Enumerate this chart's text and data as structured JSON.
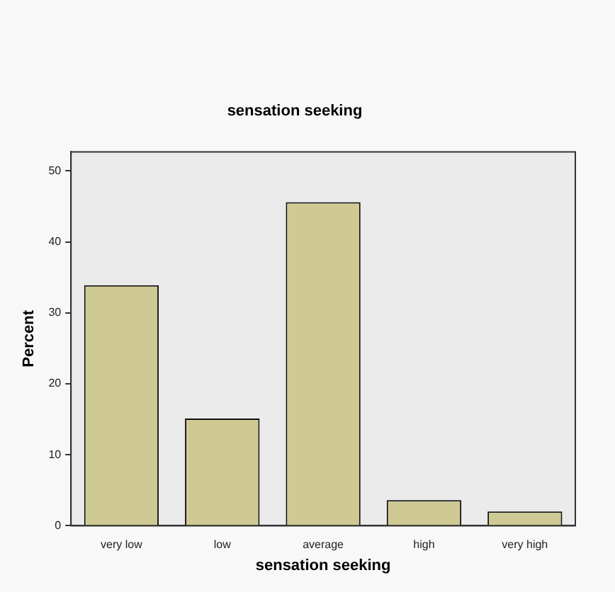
{
  "chart_data": {
    "type": "bar",
    "title": "sensation seeking",
    "xlabel": "sensation seeking",
    "ylabel": "Percent",
    "categories": [
      "very low",
      "low",
      "average",
      "high",
      "very high"
    ],
    "values": [
      33.9,
      15.1,
      45.6,
      3.6,
      2.0
    ],
    "color": "#cfca94",
    "ylim": [
      0,
      52.7
    ],
    "yticks": [
      0,
      10,
      20,
      30,
      40,
      50
    ],
    "grid": false,
    "legend": false
  }
}
